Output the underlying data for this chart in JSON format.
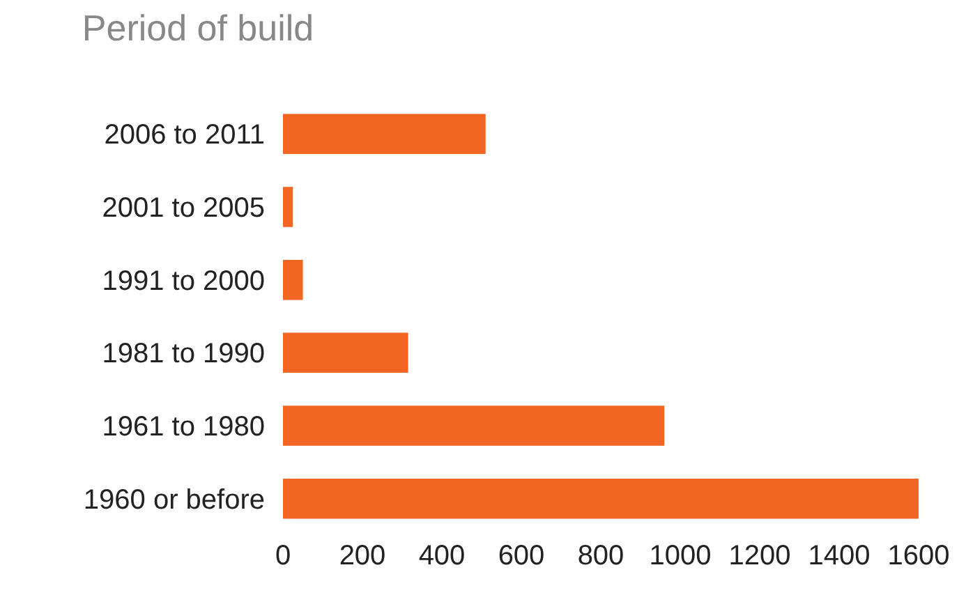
{
  "chart_data": {
    "type": "bar",
    "orientation": "horizontal",
    "title": "Period of build",
    "categories": [
      "2006 to 2011",
      "2001 to 2005",
      "1991 to 2000",
      "1981 to 1990",
      "1961 to 1980",
      "1960 or before"
    ],
    "values": [
      510,
      25,
      50,
      315,
      960,
      1600
    ],
    "color": "#f26522",
    "xlim": [
      0,
      1600
    ],
    "xticks": [
      0,
      200,
      400,
      600,
      800,
      1000,
      1200,
      1400,
      1600
    ],
    "grid": false,
    "legend": false
  }
}
